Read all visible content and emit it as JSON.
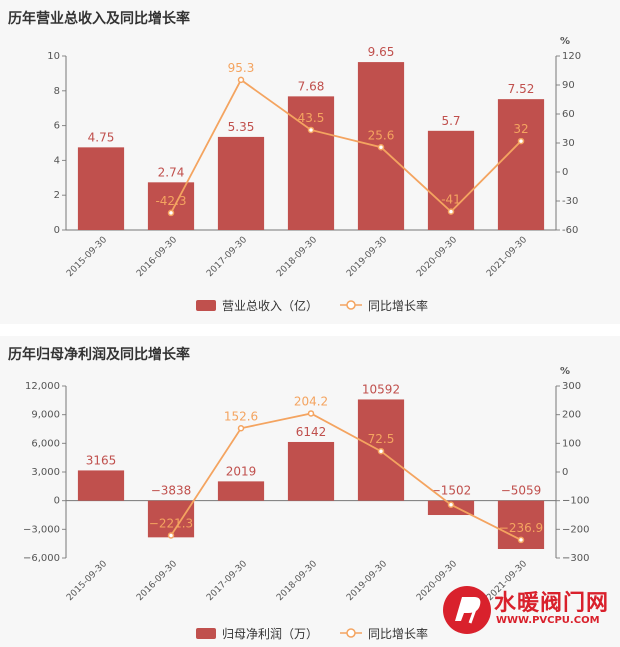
{
  "chart_data": [
    {
      "type": "bar",
      "title": "历年营业总收入及同比增长率",
      "categories": [
        "2015-09-30",
        "2016-09-30",
        "2017-09-30",
        "2018-09-30",
        "2019-09-30",
        "2020-09-30",
        "2021-09-30"
      ],
      "series": [
        {
          "name": "营业总收入（亿）",
          "type": "bar",
          "axis": "left",
          "values": [
            4.75,
            2.74,
            5.35,
            7.68,
            9.65,
            5.7,
            7.52
          ],
          "labels": [
            "4.75",
            "2.74",
            "5.35",
            "7.68",
            "9.65",
            "5.7",
            "7.52"
          ]
        },
        {
          "name": "同比增长率",
          "type": "line",
          "axis": "right",
          "values": [
            null,
            -42.3,
            95.3,
            43.5,
            25.6,
            -41,
            32
          ],
          "labels": [
            "",
            "-42.3",
            "95.3",
            "43.5",
            "25.6",
            "-41",
            "32"
          ]
        }
      ],
      "y_left": {
        "min": 0,
        "max": 10,
        "ticks": [
          "0",
          "2",
          "4",
          "6",
          "8",
          "10"
        ]
      },
      "y_right": {
        "min": -60,
        "max": 120,
        "ticks": [
          "-60",
          "-30",
          "0",
          "30",
          "60",
          "90",
          "120"
        ],
        "unit": "%"
      },
      "legend": "bottom",
      "colors": {
        "bar": "#c0504d",
        "line": "#f4a460"
      }
    },
    {
      "type": "bar",
      "title": "历年归母净利润及同比增长率",
      "categories": [
        "2015-09-30",
        "2016-09-30",
        "2017-09-30",
        "2018-09-30",
        "2019-09-30",
        "2020-09-30",
        "2021-09-30"
      ],
      "series": [
        {
          "name": "归母净利润（万）",
          "type": "bar",
          "axis": "left",
          "values": [
            3165,
            -3838,
            2019,
            6142,
            10592,
            -1502,
            -5059
          ],
          "labels": [
            "3165",
            "−3838",
            "2019",
            "6142",
            "10592",
            "−1502",
            "−5059"
          ]
        },
        {
          "name": "同比增长率",
          "type": "line",
          "axis": "right",
          "values": [
            null,
            -221.3,
            152.6,
            204.2,
            72.5,
            -114.2,
            -236.9
          ],
          "labels": [
            "",
            "−221.3",
            "152.6",
            "204.2",
            "72.5",
            "",
            "−236.9"
          ]
        }
      ],
      "y_left": {
        "min": -6000,
        "max": 12000,
        "ticks": [
          "−6,000",
          "−3,000",
          "0",
          "3,000",
          "6,000",
          "9,000",
          "12,000"
        ]
      },
      "y_right": {
        "min": -300,
        "max": 300,
        "ticks": [
          "−300",
          "−200",
          "−100",
          "0",
          "100",
          "200",
          "300"
        ],
        "unit": "%"
      },
      "legend": "bottom",
      "colors": {
        "bar": "#c0504d",
        "line": "#f4a460"
      }
    }
  ],
  "watermark": {
    "text": "水暖阀门网",
    "url": "WWW.PVCPU.COM"
  }
}
